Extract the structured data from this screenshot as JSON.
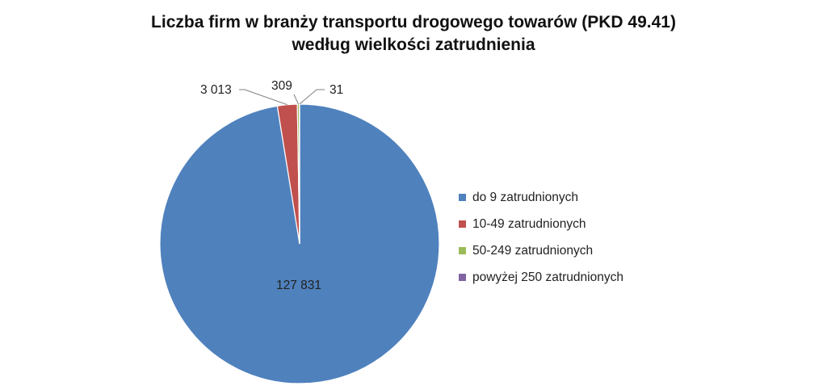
{
  "chart_data": {
    "type": "pie",
    "title": "Liczba firm w branży transportu drogowego towarów (PKD 49.41)",
    "subtitle": "według wielkości zatrudnienia",
    "slices": [
      {
        "label": "do 9 zatrudnionych",
        "value": 127831,
        "display": "127 831",
        "color": "#4F81BD"
      },
      {
        "label": "10-49 zatrudnionych",
        "value": 3013,
        "display": "3 013",
        "color": "#C0504D"
      },
      {
        "label": "50-249 zatrudnionych",
        "value": 309,
        "display": "309",
        "color": "#9BBB59"
      },
      {
        "label": "powyżej 250 zatrudnionych",
        "value": 31,
        "display": "31",
        "color": "#8064A2"
      }
    ],
    "legend_position": "right"
  }
}
